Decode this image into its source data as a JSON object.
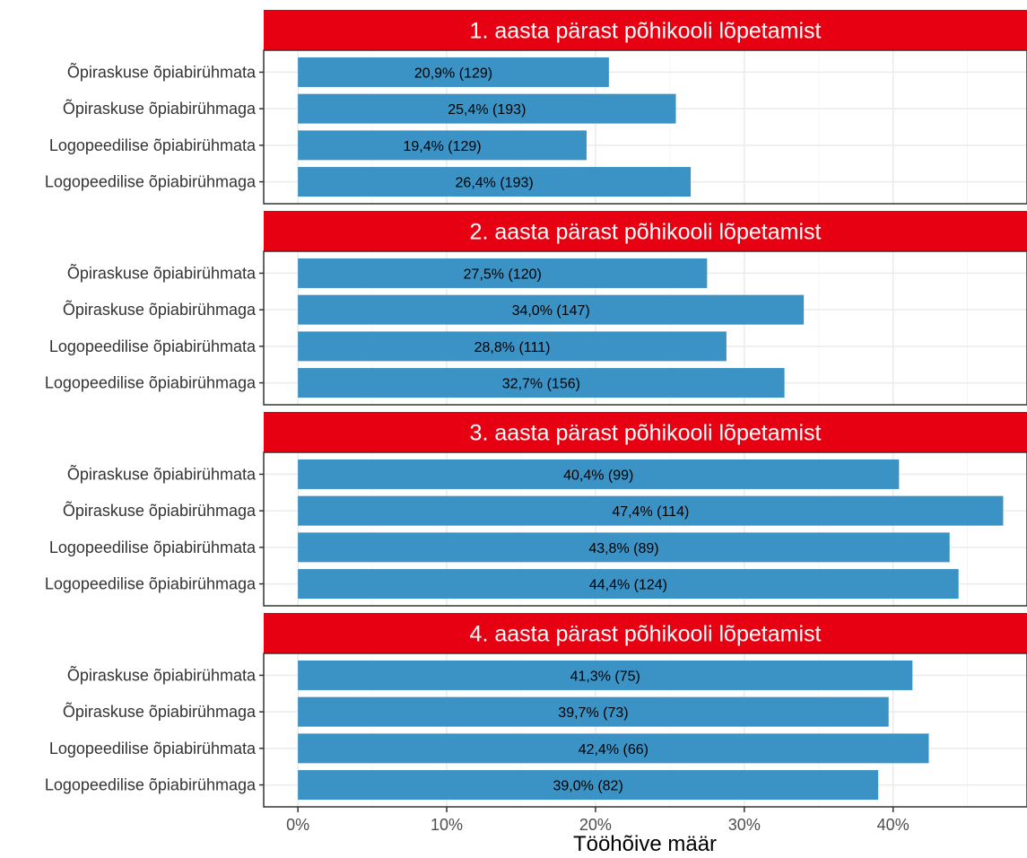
{
  "chart_data": {
    "type": "bar",
    "orientation": "horizontal",
    "facets": [
      {
        "title": "1. aasta pärast põhikooli lõpetamist",
        "categories": [
          "Õpiraskuse õpiabirühmata",
          "Õpiraskuse õpiabirühmaga",
          "Logopeedilise õpiabirühmata",
          "Logopeedilise õpiabirühmaga"
        ],
        "values": [
          20.9,
          25.4,
          19.4,
          26.4
        ],
        "labels": [
          "20,9% (129)",
          "25,4% (193)",
          "19,4% (129)",
          "26,4% (193)"
        ]
      },
      {
        "title": "2. aasta pärast põhikooli lõpetamist",
        "categories": [
          "Õpiraskuse õpiabirühmata",
          "Õpiraskuse õpiabirühmaga",
          "Logopeedilise õpiabirühmata",
          "Logopeedilise õpiabirühmaga"
        ],
        "values": [
          27.5,
          34.0,
          28.8,
          32.7
        ],
        "labels": [
          "27,5% (120)",
          "34,0% (147)",
          "28,8% (111)",
          "32,7% (156)"
        ]
      },
      {
        "title": "3. aasta pärast põhikooli lõpetamist",
        "categories": [
          "Õpiraskuse õpiabirühmata",
          "Õpiraskuse õpiabirühmaga",
          "Logopeedilise õpiabirühmata",
          "Logopeedilise õpiabirühmaga"
        ],
        "values": [
          40.4,
          47.4,
          43.8,
          44.4
        ],
        "labels": [
          "40,4% (99)",
          "47,4% (114)",
          "43,8% (89)",
          "44,4% (124)"
        ]
      },
      {
        "title": "4. aasta pärast põhikooli lõpetamist",
        "categories": [
          "Õpiraskuse õpiabirühmata",
          "Õpiraskuse õpiabirühmaga",
          "Logopeedilise õpiabirühmata",
          "Logopeedilise õpiabirühmaga"
        ],
        "values": [
          41.3,
          39.7,
          42.4,
          39.0
        ],
        "labels": [
          "41,3% (75)",
          "39,7% (73)",
          "42,4% (66)",
          "39,0% (82)"
        ]
      }
    ],
    "xlabel": "Tööhõive määr",
    "xlim": [
      -2.3,
      49.0
    ],
    "x_ticks": [
      0,
      10,
      20,
      30,
      40
    ],
    "x_tick_labels": [
      "0%",
      "10%",
      "20%",
      "30%",
      "40%"
    ],
    "grid": true,
    "colors": {
      "bar": "#3a92c5",
      "strip": "#e60012",
      "strip_text": "#ffffff",
      "grid_major": "#ebebeb",
      "grid_minor": "#f5f5f5"
    }
  }
}
